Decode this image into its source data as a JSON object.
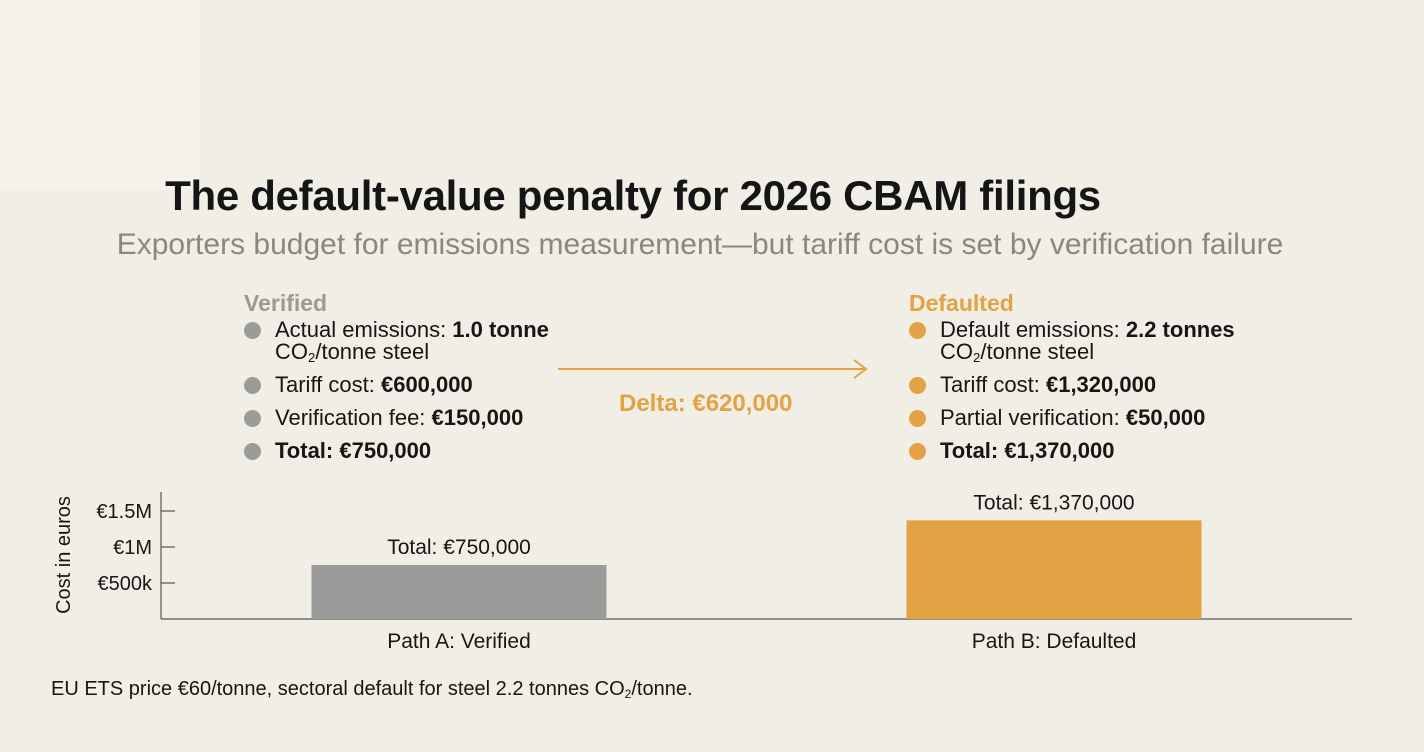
{
  "title": "The default-value penalty for 2026 CBAM filings",
  "subtitle": "Exporters budget for emissions measurement—but tariff cost is set by verification failure",
  "verified": {
    "heading": "Verified",
    "bullets": [
      {
        "label": "Actual emissions: ",
        "value": "1.0 tonne",
        "unit_pre": " CO",
        "unit_sub": "2",
        "unit_post": "/tonne steel"
      },
      {
        "label": "Tariff cost: ",
        "value": "€600,000"
      },
      {
        "label": "Verification fee: ",
        "value": "€150,000"
      },
      {
        "label": "Total: €750,000"
      }
    ]
  },
  "defaulted": {
    "heading": "Defaulted",
    "bullets": [
      {
        "label": "Default emissions: ",
        "value": "2.2 tonnes",
        "unit_pre": " CO",
        "unit_sub": "2",
        "unit_post": "/tonne steel"
      },
      {
        "label": "Tariff cost: ",
        "value": "€1,320,000"
      },
      {
        "label": "Partial verification: ",
        "value": "€50,000"
      },
      {
        "label": "Total: €1,370,000"
      }
    ]
  },
  "delta_label": "Delta: €620,000",
  "colors": {
    "verified": "#9b9b9a",
    "defaulted": "#e3a243",
    "axis": "#555555",
    "background": "#f1eee6"
  },
  "chart_data": {
    "type": "bar",
    "ylabel": "Cost in euros",
    "categories": [
      "Path A: Verified",
      "Path B: Defaulted"
    ],
    "values": [
      750000,
      1370000
    ],
    "data_labels": [
      "Total: €750,000",
      "Total: €1,370,000"
    ],
    "y_ticks": [
      {
        "value": 500000,
        "label": "€500k"
      },
      {
        "value": 1000000,
        "label": "€1M"
      },
      {
        "value": 1500000,
        "label": "€1.5M"
      }
    ],
    "ylim": [
      0,
      1750000
    ],
    "grid": false,
    "legend": "none"
  },
  "footnote": {
    "pre": "EU ETS price €60/tonne, sectoral default for steel 2.2 tonnes CO",
    "sub": "2",
    "post": "/tonne."
  }
}
